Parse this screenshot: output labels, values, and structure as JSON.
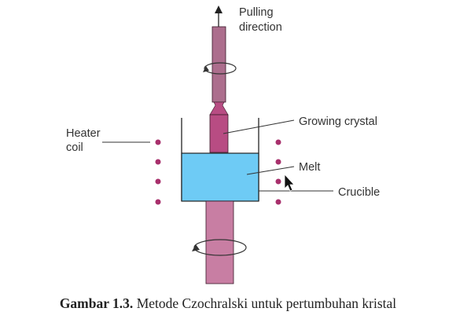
{
  "diagram": {
    "labels": {
      "pulling_line1": "Pulling",
      "pulling_line2": "direction",
      "growing_crystal": "Growing crystal",
      "heater_line1": "Heater",
      "heater_line2": "coil",
      "melt": "Melt",
      "crucible": "Crucible"
    },
    "colors": {
      "seed_rod": "#ac6e8d",
      "crystal": "#b84c83",
      "melt": "#6ecbf5",
      "bottom_rod": "#c87ea3",
      "heater_dots": "#a8306c",
      "lines": "#222222"
    },
    "icons": [
      "arrow-up-icon",
      "rotation-arrow-icon",
      "mouse-cursor-icon"
    ]
  },
  "caption": {
    "label": "Gambar 1.3.",
    "text": " Metode Czochralski untuk pertumbuhan kristal"
  }
}
